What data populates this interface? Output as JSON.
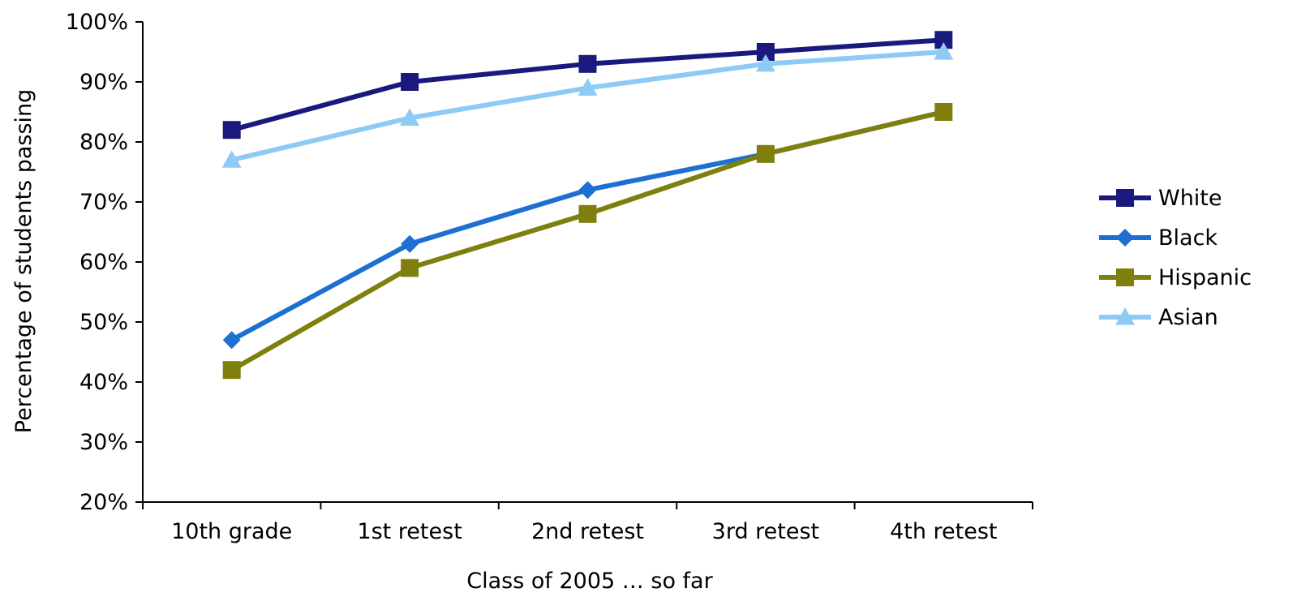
{
  "chart_data": {
    "type": "line",
    "title": "",
    "xlabel": "Class of 2005 … so far",
    "ylabel": "Percentage of students passing",
    "categories": [
      "10th grade",
      "1st retest",
      "2nd retest",
      "3rd retest",
      "4th retest"
    ],
    "ylim": [
      20,
      100
    ],
    "y_ticks": [
      20,
      30,
      40,
      50,
      60,
      70,
      80,
      90,
      100
    ],
    "y_tick_labels": [
      "20%",
      "30%",
      "40%",
      "50%",
      "60%",
      "70%",
      "80%",
      "90%",
      "100%"
    ],
    "grid": false,
    "legend_position": "right",
    "series": [
      {
        "name": "White",
        "values": [
          82,
          90,
          93,
          95,
          97
        ],
        "color": "#1A1A7E",
        "marker": "square"
      },
      {
        "name": "Black",
        "values": [
          47,
          63,
          72,
          78,
          85
        ],
        "color": "#1E6FD2",
        "marker": "diamond"
      },
      {
        "name": "Hispanic",
        "values": [
          42,
          59,
          68,
          78,
          85
        ],
        "color": "#7F7F0E",
        "marker": "square"
      },
      {
        "name": "Asian",
        "values": [
          77,
          84,
          89,
          93,
          95
        ],
        "color": "#8ECBF4",
        "marker": "triangle"
      }
    ]
  }
}
